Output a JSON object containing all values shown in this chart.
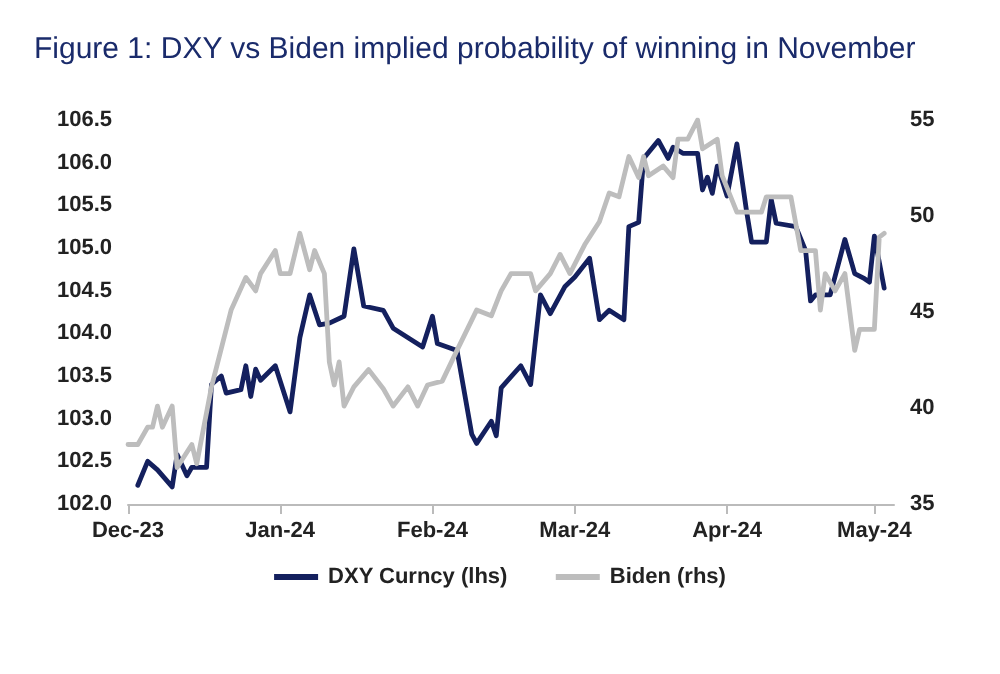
{
  "chart_data": {
    "type": "line",
    "title": "Figure 1: DXY vs Biden implied probability of winning in November",
    "xlim": [
      "2023-12-01",
      "2024-05-05"
    ],
    "xticks": [
      {
        "value": "2023-12-01",
        "label": "Dec-23"
      },
      {
        "value": "2024-01-01",
        "label": "Jan-24"
      },
      {
        "value": "2024-02-01",
        "label": "Feb-24"
      },
      {
        "value": "2024-03-01",
        "label": "Mar-24"
      },
      {
        "value": "2024-04-01",
        "label": "Apr-24"
      },
      {
        "value": "2024-05-01",
        "label": "May-24"
      }
    ],
    "ylim": [
      102,
      106.5
    ],
    "yticks": [
      {
        "value": 102,
        "label": "102.0"
      },
      102.5,
      {
        "value": 103,
        "label": "103.0"
      },
      103.5,
      {
        "value": 104,
        "label": "104.0"
      },
      104.5,
      {
        "value": 105,
        "label": "105.0"
      },
      105.5,
      {
        "value": 106,
        "label": "106.0"
      },
      106.5
    ],
    "y2lim": [
      35,
      55
    ],
    "y2ticks": [
      35,
      40,
      45,
      50,
      55
    ],
    "grid": false,
    "legend": "bottom",
    "series": [
      {
        "name": "DXY Curncy (lhs)",
        "color": "#14205e",
        "x": [
          "2023-12-03",
          "2023-12-05",
          "2023-12-07",
          "2023-12-10",
          "2023-12-11",
          "2023-12-13",
          "2023-12-14",
          "2023-12-17",
          "2023-12-18",
          "2023-12-20",
          "2023-12-21",
          "2023-12-24",
          "2023-12-25",
          "2023-12-26",
          "2023-12-27",
          "2023-12-28",
          "2023-12-31",
          "2024-01-03",
          "2024-01-05",
          "2024-01-07",
          "2024-01-09",
          "2024-01-11",
          "2024-01-14",
          "2024-01-16",
          "2024-01-18",
          "2024-01-22",
          "2024-01-24",
          "2024-01-30",
          "2024-02-01",
          "2024-02-02",
          "2024-02-06",
          "2024-02-09",
          "2024-02-10",
          "2024-02-13",
          "2024-02-14",
          "2024-02-15",
          "2024-02-19",
          "2024-02-21",
          "2024-02-23",
          "2024-02-25",
          "2024-02-28",
          "2024-03-01",
          "2024-03-04",
          "2024-03-06",
          "2024-03-08",
          "2024-03-11",
          "2024-03-12",
          "2024-03-14",
          "2024-03-15",
          "2024-03-18",
          "2024-03-20",
          "2024-03-21",
          "2024-03-23",
          "2024-03-26",
          "2024-03-27",
          "2024-03-28",
          "2024-03-29",
          "2024-03-30",
          "2024-03-31",
          "2024-04-01",
          "2024-04-03",
          "2024-04-05",
          "2024-04-06",
          "2024-04-09",
          "2024-04-10",
          "2024-04-11",
          "2024-04-15",
          "2024-04-17",
          "2024-04-18",
          "2024-04-19",
          "2024-04-22",
          "2024-04-25",
          "2024-04-27",
          "2024-04-29",
          "2024-04-30",
          "2024-05-01",
          "2024-05-03"
        ],
        "values": [
          102.22,
          102.5,
          102.4,
          102.2,
          102.58,
          102.33,
          102.43,
          102.43,
          103.4,
          103.5,
          103.3,
          103.34,
          103.62,
          103.26,
          103.58,
          103.45,
          103.62,
          103.08,
          103.95,
          104.45,
          104.1,
          104.12,
          104.2,
          104.99,
          104.32,
          104.27,
          104.06,
          103.84,
          104.2,
          103.88,
          103.8,
          102.82,
          102.71,
          102.97,
          102.8,
          103.36,
          103.62,
          103.4,
          104.45,
          104.23,
          104.55,
          104.66,
          104.88,
          104.16,
          104.27,
          104.16,
          105.25,
          105.3,
          106.05,
          106.26,
          106.05,
          106.18,
          106.11,
          106.11,
          105.68,
          105.83,
          105.64,
          105.96,
          105.79,
          105.61,
          106.22,
          105.42,
          105.07,
          105.07,
          105.57,
          105.29,
          105.25,
          104.97,
          104.38,
          104.45,
          104.45,
          105.1,
          104.7,
          104.64,
          104.6,
          105.14,
          104.53
        ]
      },
      {
        "name": "Biden (rhs)",
        "color": "#bdbdbd",
        "axis": "y2",
        "x": [
          "2023-12-01",
          "2023-12-03",
          "2023-12-05",
          "2023-12-06",
          "2023-12-07",
          "2023-12-08",
          "2023-12-10",
          "2023-12-11",
          "2023-12-14",
          "2023-12-15",
          "2023-12-18",
          "2023-12-22",
          "2023-12-25",
          "2023-12-27",
          "2023-12-28",
          "2023-12-31",
          "2024-01-01",
          "2024-01-03",
          "2024-01-05",
          "2024-01-07",
          "2024-01-08",
          "2024-01-10",
          "2024-01-11",
          "2024-01-12",
          "2024-01-13",
          "2024-01-14",
          "2024-01-16",
          "2024-01-19",
          "2024-01-22",
          "2024-01-24",
          "2024-01-27",
          "2024-01-29",
          "2024-01-31",
          "2024-02-03",
          "2024-02-06",
          "2024-02-10",
          "2024-02-13",
          "2024-02-15",
          "2024-02-17",
          "2024-02-21",
          "2024-02-22",
          "2024-02-25",
          "2024-02-27",
          "2024-02-29",
          "2024-03-03",
          "2024-03-06",
          "2024-03-08",
          "2024-03-10",
          "2024-03-12",
          "2024-03-14",
          "2024-03-15",
          "2024-03-16",
          "2024-03-19",
          "2024-03-21",
          "2024-03-22",
          "2024-03-24",
          "2024-03-26",
          "2024-03-27",
          "2024-03-30",
          "2024-03-31",
          "2024-04-03",
          "2024-04-08",
          "2024-04-09",
          "2024-04-14",
          "2024-04-16",
          "2024-04-19",
          "2024-04-20",
          "2024-04-21",
          "2024-04-23",
          "2024-04-25",
          "2024-04-27",
          "2024-04-28",
          "2024-05-01",
          "2024-05-02",
          "2024-05-03"
        ],
        "values": [
          38.1,
          38.1,
          39.0,
          39.0,
          40.1,
          39.0,
          40.1,
          36.9,
          38.1,
          37.1,
          41.1,
          45.1,
          46.8,
          46.1,
          47.0,
          48.2,
          47.0,
          47.0,
          49.1,
          47.2,
          48.2,
          47.0,
          42.4,
          41.2,
          42.4,
          40.1,
          41.1,
          42.0,
          41.0,
          40.1,
          41.1,
          40.1,
          41.2,
          41.4,
          43.0,
          45.1,
          44.8,
          46.1,
          47.0,
          47.0,
          46.1,
          47.0,
          48.0,
          47.0,
          48.5,
          49.7,
          51.2,
          51.0,
          53.1,
          52.0,
          53.1,
          52.1,
          52.6,
          52.0,
          54.0,
          54.0,
          55.0,
          53.5,
          54.0,
          52.1,
          50.2,
          50.2,
          51.0,
          51.0,
          48.2,
          48.2,
          45.1,
          47.0,
          46.1,
          47.0,
          43.0,
          44.1,
          44.1,
          48.9,
          49.1
        ]
      }
    ]
  }
}
